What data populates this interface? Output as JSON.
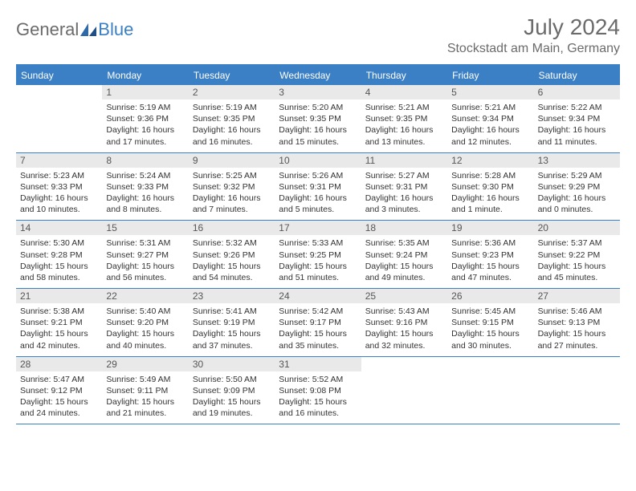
{
  "brand": {
    "part1": "General",
    "part2": "Blue"
  },
  "title": "July 2024",
  "location": "Stockstadt am Main, Germany",
  "colors": {
    "accent": "#3b7fc4",
    "daynum_bg": "#e9e9e9",
    "text": "#333333",
    "muted": "#6b6b6b",
    "background": "#ffffff"
  },
  "daynames": [
    "Sunday",
    "Monday",
    "Tuesday",
    "Wednesday",
    "Thursday",
    "Friday",
    "Saturday"
  ],
  "weeks": [
    [
      {
        "n": null
      },
      {
        "n": "1",
        "sunrise": "Sunrise: 5:19 AM",
        "sunset": "Sunset: 9:36 PM",
        "daylight": "Daylight: 16 hours and 17 minutes."
      },
      {
        "n": "2",
        "sunrise": "Sunrise: 5:19 AM",
        "sunset": "Sunset: 9:35 PM",
        "daylight": "Daylight: 16 hours and 16 minutes."
      },
      {
        "n": "3",
        "sunrise": "Sunrise: 5:20 AM",
        "sunset": "Sunset: 9:35 PM",
        "daylight": "Daylight: 16 hours and 15 minutes."
      },
      {
        "n": "4",
        "sunrise": "Sunrise: 5:21 AM",
        "sunset": "Sunset: 9:35 PM",
        "daylight": "Daylight: 16 hours and 13 minutes."
      },
      {
        "n": "5",
        "sunrise": "Sunrise: 5:21 AM",
        "sunset": "Sunset: 9:34 PM",
        "daylight": "Daylight: 16 hours and 12 minutes."
      },
      {
        "n": "6",
        "sunrise": "Sunrise: 5:22 AM",
        "sunset": "Sunset: 9:34 PM",
        "daylight": "Daylight: 16 hours and 11 minutes."
      }
    ],
    [
      {
        "n": "7",
        "sunrise": "Sunrise: 5:23 AM",
        "sunset": "Sunset: 9:33 PM",
        "daylight": "Daylight: 16 hours and 10 minutes."
      },
      {
        "n": "8",
        "sunrise": "Sunrise: 5:24 AM",
        "sunset": "Sunset: 9:33 PM",
        "daylight": "Daylight: 16 hours and 8 minutes."
      },
      {
        "n": "9",
        "sunrise": "Sunrise: 5:25 AM",
        "sunset": "Sunset: 9:32 PM",
        "daylight": "Daylight: 16 hours and 7 minutes."
      },
      {
        "n": "10",
        "sunrise": "Sunrise: 5:26 AM",
        "sunset": "Sunset: 9:31 PM",
        "daylight": "Daylight: 16 hours and 5 minutes."
      },
      {
        "n": "11",
        "sunrise": "Sunrise: 5:27 AM",
        "sunset": "Sunset: 9:31 PM",
        "daylight": "Daylight: 16 hours and 3 minutes."
      },
      {
        "n": "12",
        "sunrise": "Sunrise: 5:28 AM",
        "sunset": "Sunset: 9:30 PM",
        "daylight": "Daylight: 16 hours and 1 minute."
      },
      {
        "n": "13",
        "sunrise": "Sunrise: 5:29 AM",
        "sunset": "Sunset: 9:29 PM",
        "daylight": "Daylight: 16 hours and 0 minutes."
      }
    ],
    [
      {
        "n": "14",
        "sunrise": "Sunrise: 5:30 AM",
        "sunset": "Sunset: 9:28 PM",
        "daylight": "Daylight: 15 hours and 58 minutes."
      },
      {
        "n": "15",
        "sunrise": "Sunrise: 5:31 AM",
        "sunset": "Sunset: 9:27 PM",
        "daylight": "Daylight: 15 hours and 56 minutes."
      },
      {
        "n": "16",
        "sunrise": "Sunrise: 5:32 AM",
        "sunset": "Sunset: 9:26 PM",
        "daylight": "Daylight: 15 hours and 54 minutes."
      },
      {
        "n": "17",
        "sunrise": "Sunrise: 5:33 AM",
        "sunset": "Sunset: 9:25 PM",
        "daylight": "Daylight: 15 hours and 51 minutes."
      },
      {
        "n": "18",
        "sunrise": "Sunrise: 5:35 AM",
        "sunset": "Sunset: 9:24 PM",
        "daylight": "Daylight: 15 hours and 49 minutes."
      },
      {
        "n": "19",
        "sunrise": "Sunrise: 5:36 AM",
        "sunset": "Sunset: 9:23 PM",
        "daylight": "Daylight: 15 hours and 47 minutes."
      },
      {
        "n": "20",
        "sunrise": "Sunrise: 5:37 AM",
        "sunset": "Sunset: 9:22 PM",
        "daylight": "Daylight: 15 hours and 45 minutes."
      }
    ],
    [
      {
        "n": "21",
        "sunrise": "Sunrise: 5:38 AM",
        "sunset": "Sunset: 9:21 PM",
        "daylight": "Daylight: 15 hours and 42 minutes."
      },
      {
        "n": "22",
        "sunrise": "Sunrise: 5:40 AM",
        "sunset": "Sunset: 9:20 PM",
        "daylight": "Daylight: 15 hours and 40 minutes."
      },
      {
        "n": "23",
        "sunrise": "Sunrise: 5:41 AM",
        "sunset": "Sunset: 9:19 PM",
        "daylight": "Daylight: 15 hours and 37 minutes."
      },
      {
        "n": "24",
        "sunrise": "Sunrise: 5:42 AM",
        "sunset": "Sunset: 9:17 PM",
        "daylight": "Daylight: 15 hours and 35 minutes."
      },
      {
        "n": "25",
        "sunrise": "Sunrise: 5:43 AM",
        "sunset": "Sunset: 9:16 PM",
        "daylight": "Daylight: 15 hours and 32 minutes."
      },
      {
        "n": "26",
        "sunrise": "Sunrise: 5:45 AM",
        "sunset": "Sunset: 9:15 PM",
        "daylight": "Daylight: 15 hours and 30 minutes."
      },
      {
        "n": "27",
        "sunrise": "Sunrise: 5:46 AM",
        "sunset": "Sunset: 9:13 PM",
        "daylight": "Daylight: 15 hours and 27 minutes."
      }
    ],
    [
      {
        "n": "28",
        "sunrise": "Sunrise: 5:47 AM",
        "sunset": "Sunset: 9:12 PM",
        "daylight": "Daylight: 15 hours and 24 minutes."
      },
      {
        "n": "29",
        "sunrise": "Sunrise: 5:49 AM",
        "sunset": "Sunset: 9:11 PM",
        "daylight": "Daylight: 15 hours and 21 minutes."
      },
      {
        "n": "30",
        "sunrise": "Sunrise: 5:50 AM",
        "sunset": "Sunset: 9:09 PM",
        "daylight": "Daylight: 15 hours and 19 minutes."
      },
      {
        "n": "31",
        "sunrise": "Sunrise: 5:52 AM",
        "sunset": "Sunset: 9:08 PM",
        "daylight": "Daylight: 15 hours and 16 minutes."
      },
      {
        "n": null
      },
      {
        "n": null
      },
      {
        "n": null
      }
    ]
  ]
}
